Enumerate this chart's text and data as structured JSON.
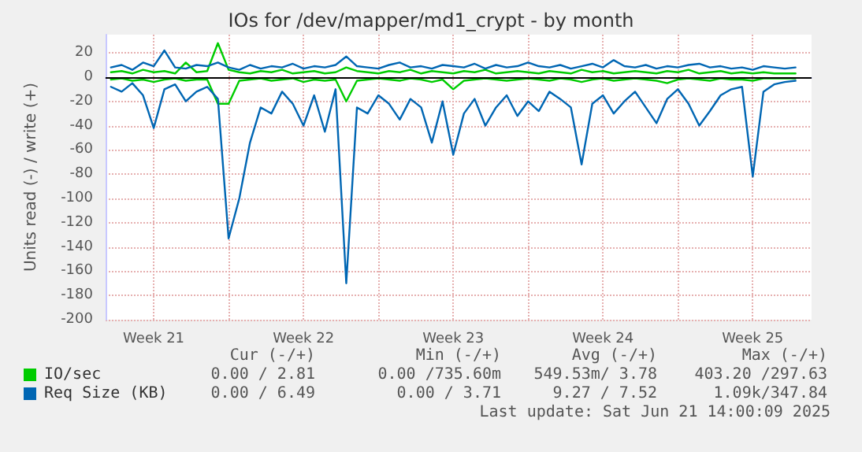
{
  "chart_data": {
    "type": "line",
    "title": "IOs for /dev/mapper/md1_crypt - by month",
    "ylabel": "Units read (-) / write (+)",
    "x": [
      "2025-05-20T12:00",
      "2025-05-21T00:00",
      "2025-05-21T12:00",
      "2025-05-22T00:00",
      "2025-05-22T12:00",
      "2025-05-23T00:00",
      "2025-05-23T12:00",
      "2025-05-24T00:00",
      "2025-05-24T12:00",
      "2025-05-25T00:00",
      "2025-05-25T12:00",
      "2025-05-26T00:00",
      "2025-05-26T12:00",
      "2025-05-27T00:00",
      "2025-05-27T12:00",
      "2025-05-28T00:00",
      "2025-05-28T12:00",
      "2025-05-29T00:00",
      "2025-05-29T12:00",
      "2025-05-30T00:00",
      "2025-05-30T12:00",
      "2025-05-31T00:00",
      "2025-05-31T12:00",
      "2025-06-01T00:00",
      "2025-06-01T12:00",
      "2025-06-02T00:00",
      "2025-06-02T12:00",
      "2025-06-03T00:00",
      "2025-06-03T12:00",
      "2025-06-04T00:00",
      "2025-06-04T12:00",
      "2025-06-05T00:00",
      "2025-06-05T12:00",
      "2025-06-06T00:00",
      "2025-06-06T12:00",
      "2025-06-07T00:00",
      "2025-06-07T12:00",
      "2025-06-08T00:00",
      "2025-06-08T12:00",
      "2025-06-09T00:00",
      "2025-06-09T12:00",
      "2025-06-10T00:00",
      "2025-06-10T12:00",
      "2025-06-11T00:00",
      "2025-06-11T12:00",
      "2025-06-12T00:00",
      "2025-06-12T12:00",
      "2025-06-13T00:00",
      "2025-06-13T12:00",
      "2025-06-14T00:00",
      "2025-06-14T12:00",
      "2025-06-15T00:00",
      "2025-06-15T12:00",
      "2025-06-16T00:00",
      "2025-06-16T12:00",
      "2025-06-17T00:00",
      "2025-06-17T12:00",
      "2025-06-18T00:00",
      "2025-06-18T12:00",
      "2025-06-19T00:00",
      "2025-06-19T12:00",
      "2025-06-20T00:00",
      "2025-06-20T12:00",
      "2025-06-21T00:00",
      "2025-06-21T12:00"
    ],
    "series": [
      {
        "name": "IO/sec",
        "color": "#00cc00",
        "values": [
          4,
          5,
          3,
          6,
          4,
          5,
          3,
          12,
          4,
          5,
          28,
          6,
          4,
          3,
          5,
          4,
          6,
          3,
          4,
          5,
          3,
          4,
          8,
          5,
          4,
          3,
          5,
          4,
          6,
          3,
          5,
          4,
          3,
          5,
          4,
          6,
          3,
          4,
          5,
          4,
          3,
          5,
          4,
          3,
          6,
          4,
          5,
          3,
          4,
          5,
          4,
          3,
          5,
          4,
          6,
          3,
          4,
          5,
          3,
          4,
          3,
          4,
          3,
          3,
          3
        ]
      },
      {
        "color": "#00cc00",
        "values": [
          -2,
          -1,
          -3,
          -2,
          -4,
          -2,
          -1,
          -3,
          -2,
          -2,
          -22,
          -22,
          -3,
          -2,
          -1,
          -3,
          -2,
          -1,
          -4,
          -2,
          -3,
          -2,
          -20,
          -3,
          -2,
          -1,
          -2,
          -3,
          -1,
          -2,
          -4,
          -2,
          -10,
          -3,
          -2,
          -1,
          -2,
          -3,
          -2,
          -1,
          -2,
          -3,
          -1,
          -2,
          -4,
          -2,
          -1,
          -3,
          -2,
          -1,
          -2,
          -3,
          -5,
          -2,
          -1,
          -2,
          -3,
          -1,
          -2,
          -2,
          -3,
          -1,
          -1,
          -1,
          -1
        ]
      },
      {
        "name": "Req Size (KB)",
        "color": "#0066b3",
        "values": [
          8,
          10,
          6,
          12,
          9,
          22,
          8,
          7,
          10,
          9,
          12,
          8,
          6,
          10,
          7,
          9,
          8,
          11,
          7,
          9,
          8,
          10,
          17,
          9,
          8,
          7,
          10,
          12,
          8,
          9,
          7,
          10,
          9,
          8,
          11,
          7,
          10,
          8,
          9,
          12,
          9,
          8,
          10,
          7,
          9,
          11,
          8,
          14,
          9,
          8,
          10,
          7,
          9,
          8,
          10,
          11,
          8,
          9,
          7,
          8,
          6,
          9,
          8,
          7,
          8
        ]
      },
      {
        "color": "#0066b3",
        "values": [
          -8,
          -12,
          -5,
          -15,
          -42,
          -10,
          -6,
          -20,
          -12,
          -8,
          -18,
          -133,
          -100,
          -54,
          -25,
          -30,
          -12,
          -22,
          -40,
          -15,
          -45,
          -10,
          -170,
          -25,
          -30,
          -15,
          -22,
          -35,
          -18,
          -25,
          -54,
          -20,
          -64,
          -30,
          -18,
          -40,
          -25,
          -15,
          -32,
          -20,
          -28,
          -12,
          -18,
          -25,
          -72,
          -22,
          -15,
          -30,
          -20,
          -12,
          -25,
          -38,
          -18,
          -10,
          -22,
          -40,
          -28,
          -15,
          -10,
          -8,
          -82,
          -12,
          -6,
          -4,
          -3
        ]
      }
    ],
    "xlim": [
      "2025-05-20T06:00",
      "2025-06-22T06:00"
    ],
    "xticks": [
      {
        "value": "2025-05-22T12:00",
        "label": "Week 21"
      },
      {
        "value": "2025-05-26",
        "label": null
      },
      {
        "value": "2025-05-29T12:00",
        "label": "Week 22"
      },
      {
        "value": "2025-06-02",
        "label": null
      },
      {
        "value": "2025-06-05T12:00",
        "label": "Week 23"
      },
      {
        "value": "2025-06-09",
        "label": null
      },
      {
        "value": "2025-06-12T12:00",
        "label": "Week 24"
      },
      {
        "value": "2025-06-16",
        "label": null
      },
      {
        "value": "2025-06-19T12:00",
        "label": "Week 25"
      }
    ],
    "ylim": [
      -200,
      35
    ],
    "yticks": [
      -200,
      -180,
      -160,
      -140,
      -120,
      -100,
      -80,
      -60,
      -40,
      -20,
      0,
      20
    ],
    "ref_lines": [
      {
        "axis": "y",
        "value": 0,
        "color": "#000000"
      }
    ],
    "grid": true,
    "legend": "bottom left",
    "marker": "none",
    "line_style": "solid",
    "annotations": [
      "Cur (-/+)",
      "Min (-/+)",
      "Avg (-/+)",
      "Max (-/+)",
      "0.00 / 2.81",
      "0.00 /735.60m",
      "549.53m/ 3.78",
      "403.20 /297.63",
      "0.00 / 6.49",
      "0.00 / 3.71",
      "9.27 / 7.52",
      "1.09k/347.84",
      "Last update: Sat Jun 21 14:00:09 2025"
    ]
  }
}
